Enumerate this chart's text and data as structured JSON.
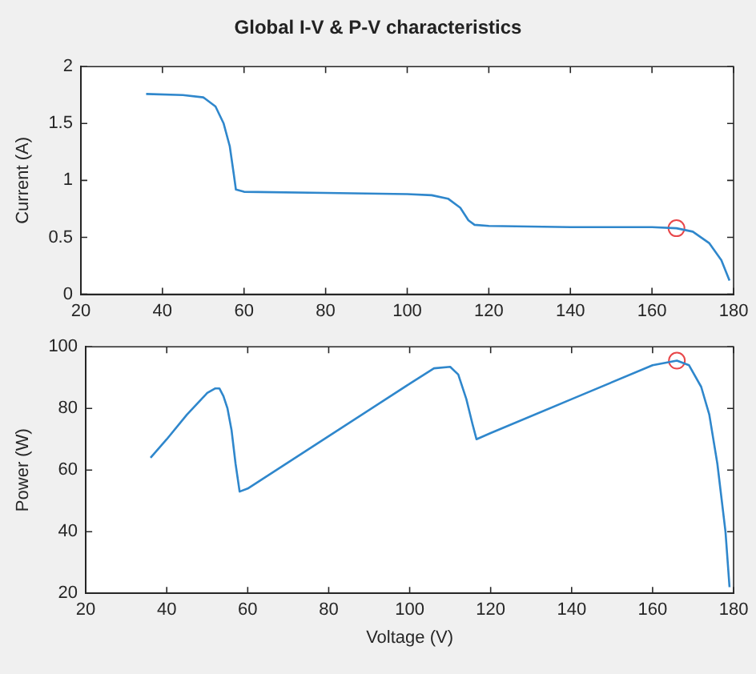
{
  "chart_data": [
    {
      "type": "line",
      "title": "Global I-V & P-V characteristics",
      "ylabel": "Current (A)",
      "xlim": [
        20,
        180
      ],
      "xticks": [
        20,
        40,
        60,
        80,
        100,
        120,
        140,
        160,
        180
      ],
      "ylim": [
        0,
        2
      ],
      "yticks": [
        0,
        0.5,
        1,
        1.5,
        2
      ],
      "grid": false,
      "legend": false,
      "series": [
        {
          "type": "line",
          "color": "#2f87cc",
          "marker": "none",
          "x": [
            36,
            45,
            50,
            53,
            55,
            56.5,
            57.5,
            58,
            60,
            80,
            100,
            106,
            110,
            113,
            115,
            116.5,
            120,
            140,
            160,
            166,
            170,
            174,
            177,
            179
          ],
          "values": [
            1.76,
            1.75,
            1.73,
            1.65,
            1.5,
            1.3,
            1.05,
            0.92,
            0.9,
            0.89,
            0.88,
            0.87,
            0.84,
            0.76,
            0.65,
            0.61,
            0.6,
            0.59,
            0.59,
            0.58,
            0.55,
            0.45,
            0.3,
            0.12
          ]
        },
        {
          "type": "scatter",
          "color": "#e8474a",
          "marker": "circle",
          "x": [
            166
          ],
          "values": [
            0.58
          ]
        }
      ]
    },
    {
      "type": "line",
      "xlabel": "Voltage (V)",
      "ylabel": "Power (W)",
      "xlim": [
        20,
        180
      ],
      "xticks": [
        20,
        40,
        60,
        80,
        100,
        120,
        140,
        160,
        180
      ],
      "ylim": [
        20,
        100
      ],
      "yticks": [
        20,
        40,
        60,
        80,
        100
      ],
      "grid": false,
      "legend": false,
      "series": [
        {
          "type": "line",
          "color": "#2f87cc",
          "marker": "none",
          "x": [
            36,
            40,
            45,
            50,
            52,
            53,
            54,
            55,
            56,
            57,
            58,
            60,
            80,
            100,
            106,
            110,
            112,
            114,
            115.5,
            116.5,
            120,
            140,
            160,
            166,
            169,
            172,
            174,
            176,
            178,
            179
          ],
          "values": [
            64,
            70,
            78,
            85,
            86.5,
            86.5,
            84,
            80,
            73,
            62,
            53,
            54,
            71,
            88,
            93,
            93.5,
            91,
            83,
            75,
            70,
            72,
            83,
            94,
            95.5,
            94,
            87,
            78,
            62,
            40,
            22
          ]
        },
        {
          "type": "scatter",
          "color": "#e8474a",
          "marker": "circle",
          "x": [
            166
          ],
          "values": [
            95.5
          ]
        }
      ]
    }
  ]
}
